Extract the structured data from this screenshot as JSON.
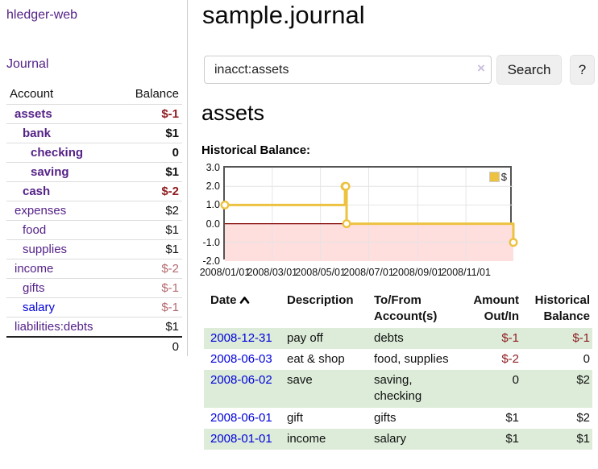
{
  "app": {
    "brand": "hledger-web"
  },
  "colors": {
    "link": "#0000dd",
    "link_visited": "#552288",
    "negative": "#8f1d21",
    "negative_muted": "#b4696f",
    "row_highlight": "#dcecd8",
    "series_gold": "#edc240",
    "negative_region": "#ffdede",
    "zero_line": "#800000"
  },
  "sidebar": {
    "journal_link": "Journal",
    "accounts": {
      "col_account": "Account",
      "col_balance": "Balance",
      "rows": [
        {
          "account": "assets",
          "balance": "$-1"
        },
        {
          "account": "bank",
          "balance": "$1"
        },
        {
          "account": "checking",
          "balance": "0"
        },
        {
          "account": "saving",
          "balance": "$1"
        },
        {
          "account": "cash",
          "balance": "$-2"
        },
        {
          "account": "expenses",
          "balance": "$2"
        },
        {
          "account": "food",
          "balance": "$1"
        },
        {
          "account": "supplies",
          "balance": "$1"
        },
        {
          "account": "income",
          "balance": "$-2"
        },
        {
          "account": "gifts",
          "balance": "$-1"
        },
        {
          "account": "salary",
          "balance": "$-1"
        },
        {
          "account": "liabilities:debts",
          "balance": "$1"
        }
      ],
      "total": "0"
    }
  },
  "main": {
    "title": "sample.journal",
    "search": {
      "value": "inacct:assets",
      "clear_icon": "×",
      "search_button": "Search",
      "help_button": "?"
    },
    "account_heading": "assets",
    "chart_heading": "Historical Balance:"
  },
  "chart_data": {
    "type": "line",
    "step": true,
    "title": "Historical Balance",
    "x_range": [
      "2008-01-01",
      "2008-12-31"
    ],
    "x_ticks": [
      "2008/01/01",
      "2008/03/01",
      "2008/05/01",
      "2008/07/01",
      "2008/09/01",
      "2008/11/01"
    ],
    "y_ticks": [
      "3.0",
      "2.0",
      "1.0",
      "0.0",
      "-1.0",
      "-2.0"
    ],
    "ylim": [
      -2,
      3
    ],
    "grid": true,
    "legend_position": "top-right",
    "series": [
      {
        "name": "$",
        "color": "#edc240",
        "points": [
          [
            "2008-01-01",
            1
          ],
          [
            "2008-06-01",
            2
          ],
          [
            "2008-06-02",
            2
          ],
          [
            "2008-06-03",
            0
          ],
          [
            "2008-12-31",
            -1
          ]
        ]
      }
    ],
    "negative_region_color": "#ffdede",
    "zero_line_color": "#800000",
    "gridline_color": "#e4e4e4"
  },
  "register": {
    "headers": {
      "date": "Date",
      "description": "Description",
      "tofrom": "To/From Account(s)",
      "amount": "Amount Out/In",
      "balance": "Historical Balance"
    },
    "rows": [
      {
        "date": "2008-12-31",
        "description": "pay off",
        "accounts": "debts",
        "amount": "$-1",
        "balance": "$-1"
      },
      {
        "date": "2008-06-03",
        "description": "eat & shop",
        "accounts": "food, supplies",
        "amount": "$-2",
        "balance": "0"
      },
      {
        "date": "2008-06-02",
        "description": "save",
        "accounts": "saving, checking",
        "amount": "0",
        "balance": "$2"
      },
      {
        "date": "2008-06-01",
        "description": "gift",
        "accounts": "gifts",
        "amount": "$1",
        "balance": "$2"
      },
      {
        "date": "2008-01-01",
        "description": "income",
        "accounts": "salary",
        "amount": "$1",
        "balance": "$1"
      }
    ]
  }
}
